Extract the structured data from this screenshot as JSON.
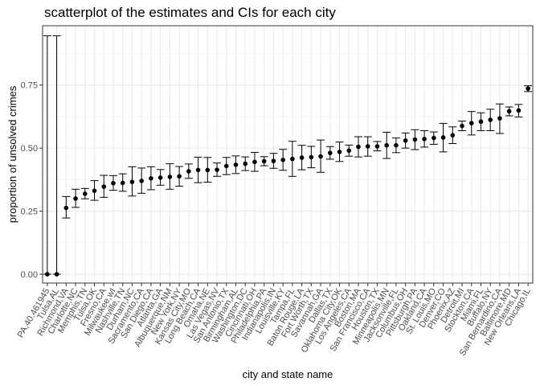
{
  "chart_data": {
    "type": "scatter",
    "title": "scatterplot of the estimates and CIs for each city",
    "xlabel": "city and state name",
    "ylabel": "proportion of unsolved crimes",
    "ylim": [
      -0.035,
      0.985
    ],
    "y_ticks": [
      0.0,
      0.25,
      0.5,
      0.75
    ],
    "y_tick_labels": [
      "0.00",
      "0.25",
      "0.50",
      "0.75"
    ],
    "grid": true,
    "legend": "none",
    "error_bars": true,
    "points": [
      {
        "city": "PA,40.461945",
        "estimate": 0.0,
        "lower": 0.0,
        "upper": 0.945
      },
      {
        "city": "Tulsa,AL",
        "estimate": 0.0,
        "lower": 0.0,
        "upper": 0.945
      },
      {
        "city": "Richmond,VA",
        "estimate": 0.263,
        "lower": 0.223,
        "upper": 0.308
      },
      {
        "city": "Charlotte,NC",
        "estimate": 0.3,
        "lower": 0.265,
        "upper": 0.337
      },
      {
        "city": "Memphis,TN",
        "estimate": 0.319,
        "lower": 0.299,
        "upper": 0.34
      },
      {
        "city": "Tulsa,OK",
        "estimate": 0.331,
        "lower": 0.293,
        "upper": 0.371
      },
      {
        "city": "Fresno,CA",
        "estimate": 0.347,
        "lower": 0.305,
        "upper": 0.392
      },
      {
        "city": "Milwaukee,wI",
        "estimate": 0.361,
        "lower": 0.333,
        "upper": 0.391
      },
      {
        "city": "Nashville,TN",
        "estimate": 0.362,
        "lower": 0.329,
        "upper": 0.398
      },
      {
        "city": "Durham,NC",
        "estimate": 0.366,
        "lower": 0.31,
        "upper": 0.426
      },
      {
        "city": "Sacramento,CA",
        "estimate": 0.37,
        "lower": 0.321,
        "upper": 0.421
      },
      {
        "city": "San Diego,CA",
        "estimate": 0.38,
        "lower": 0.335,
        "upper": 0.426
      },
      {
        "city": "Atlanta,GA",
        "estimate": 0.383,
        "lower": 0.353,
        "upper": 0.415
      },
      {
        "city": "Albuquerque,NM",
        "estimate": 0.386,
        "lower": 0.337,
        "upper": 0.438
      },
      {
        "city": "New York,NY",
        "estimate": 0.388,
        "lower": 0.349,
        "upper": 0.427
      },
      {
        "city": "Kansas City,MO",
        "estimate": 0.408,
        "lower": 0.38,
        "upper": 0.437
      },
      {
        "city": "Long Beach,CA",
        "estimate": 0.413,
        "lower": 0.363,
        "upper": 0.464
      },
      {
        "city": "Omaha,NE",
        "estimate": 0.413,
        "lower": 0.365,
        "upper": 0.463
      },
      {
        "city": "Las Vegas,NV",
        "estimate": 0.414,
        "lower": 0.388,
        "upper": 0.441
      },
      {
        "city": "San Antonio,TX",
        "estimate": 0.429,
        "lower": 0.395,
        "upper": 0.463
      },
      {
        "city": "Birmingham,AL",
        "estimate": 0.434,
        "lower": 0.399,
        "upper": 0.469
      },
      {
        "city": "Washington,DC",
        "estimate": 0.438,
        "lower": 0.411,
        "upper": 0.465
      },
      {
        "city": "Cincinnati,OH",
        "estimate": 0.445,
        "lower": 0.408,
        "upper": 0.483
      },
      {
        "city": "Philadelphia,PA",
        "estimate": 0.448,
        "lower": 0.43,
        "upper": 0.466
      },
      {
        "city": "Indianapolis,IN",
        "estimate": 0.449,
        "lower": 0.42,
        "upper": 0.479
      },
      {
        "city": "Louisville,KY",
        "estimate": 0.453,
        "lower": 0.412,
        "upper": 0.495
      },
      {
        "city": "Tampa,FL",
        "estimate": 0.457,
        "lower": 0.388,
        "upper": 0.527
      },
      {
        "city": "Baton Rouge,LA",
        "estimate": 0.462,
        "lower": 0.414,
        "upper": 0.511
      },
      {
        "city": "Fort Worth,TX",
        "estimate": 0.464,
        "lower": 0.422,
        "upper": 0.507
      },
      {
        "city": "Savannah,GA",
        "estimate": 0.467,
        "lower": 0.404,
        "upper": 0.532
      },
      {
        "city": "Dallas,TX",
        "estimate": 0.481,
        "lower": 0.456,
        "upper": 0.506
      },
      {
        "city": "Oklahoma City,OK",
        "estimate": 0.485,
        "lower": 0.447,
        "upper": 0.524
      },
      {
        "city": "Los Angeles,CA",
        "estimate": 0.49,
        "lower": 0.468,
        "upper": 0.512
      },
      {
        "city": "Boston,MA",
        "estimate": 0.505,
        "lower": 0.465,
        "upper": 0.545
      },
      {
        "city": "San Francisco,CA",
        "estimate": 0.507,
        "lower": 0.468,
        "upper": 0.545
      },
      {
        "city": "Houston,TX",
        "estimate": 0.507,
        "lower": 0.489,
        "upper": 0.526
      },
      {
        "city": "Minneapolis,MN",
        "estimate": 0.511,
        "lower": 0.459,
        "upper": 0.563
      },
      {
        "city": "Jacksonville,FL",
        "estimate": 0.511,
        "lower": 0.482,
        "upper": 0.54
      },
      {
        "city": "Columbus,OH",
        "estimate": 0.53,
        "lower": 0.5,
        "upper": 0.56
      },
      {
        "city": "Pittsburgh,PA",
        "estimate": 0.534,
        "lower": 0.494,
        "upper": 0.573
      },
      {
        "city": "Oakland,CA",
        "estimate": 0.536,
        "lower": 0.504,
        "upper": 0.569
      },
      {
        "city": "St. Louis,MO",
        "estimate": 0.54,
        "lower": 0.515,
        "upper": 0.564
      },
      {
        "city": "Denver,CO",
        "estimate": 0.542,
        "lower": 0.485,
        "upper": 0.598
      },
      {
        "city": "Phoenix,AZ",
        "estimate": 0.551,
        "lower": 0.518,
        "upper": 0.584
      },
      {
        "city": "Detroit,MI",
        "estimate": 0.588,
        "lower": 0.569,
        "upper": 0.607
      },
      {
        "city": "Stockton,CA",
        "estimate": 0.599,
        "lower": 0.552,
        "upper": 0.645
      },
      {
        "city": "Miami,FL",
        "estimate": 0.605,
        "lower": 0.569,
        "upper": 0.64
      },
      {
        "city": "Buffalo,NY",
        "estimate": 0.612,
        "lower": 0.569,
        "upper": 0.654
      },
      {
        "city": "San Bernardino,CA",
        "estimate": 0.618,
        "lower": 0.558,
        "upper": 0.675
      },
      {
        "city": "Baltimore,MD",
        "estimate": 0.646,
        "lower": 0.628,
        "upper": 0.663
      },
      {
        "city": "New Orleans,LA",
        "estimate": 0.649,
        "lower": 0.623,
        "upper": 0.673
      },
      {
        "city": "Chicago,IL",
        "estimate": 0.736,
        "lower": 0.724,
        "upper": 0.747
      }
    ]
  }
}
